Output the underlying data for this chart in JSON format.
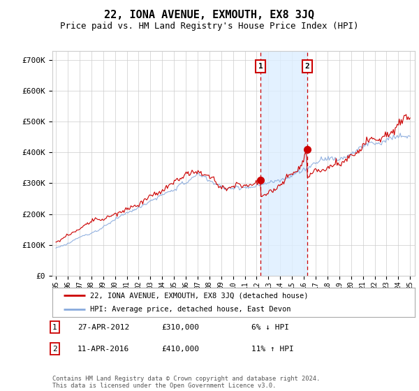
{
  "title": "22, IONA AVENUE, EXMOUTH, EX8 3JQ",
  "subtitle": "Price paid vs. HM Land Registry's House Price Index (HPI)",
  "title_fontsize": 11,
  "subtitle_fontsize": 9,
  "ylabel_ticks": [
    "£0",
    "£100K",
    "£200K",
    "£300K",
    "£400K",
    "£500K",
    "£600K",
    "£700K"
  ],
  "ytick_vals": [
    0,
    100000,
    200000,
    300000,
    400000,
    500000,
    600000,
    700000
  ],
  "ylim": [
    0,
    730000
  ],
  "xlim_start": 1994.7,
  "xlim_end": 2025.4,
  "sale1_year": 2012.32,
  "sale1_price": 310000,
  "sale2_year": 2016.28,
  "sale2_price": 410000,
  "line_color_property": "#cc0000",
  "line_color_hpi": "#88aadd",
  "shade_color": "#ddeeff",
  "grid_color": "#cccccc",
  "background_color": "#ffffff",
  "legend_label1": "22, IONA AVENUE, EXMOUTH, EX8 3JQ (detached house)",
  "legend_label2": "HPI: Average price, detached house, East Devon",
  "annotation1_date": "27-APR-2012",
  "annotation1_price": "£310,000",
  "annotation1_hpi": "6% ↓ HPI",
  "annotation2_date": "11-APR-2016",
  "annotation2_price": "£410,000",
  "annotation2_hpi": "11% ↑ HPI",
  "footer": "Contains HM Land Registry data © Crown copyright and database right 2024.\nThis data is licensed under the Open Government Licence v3.0."
}
